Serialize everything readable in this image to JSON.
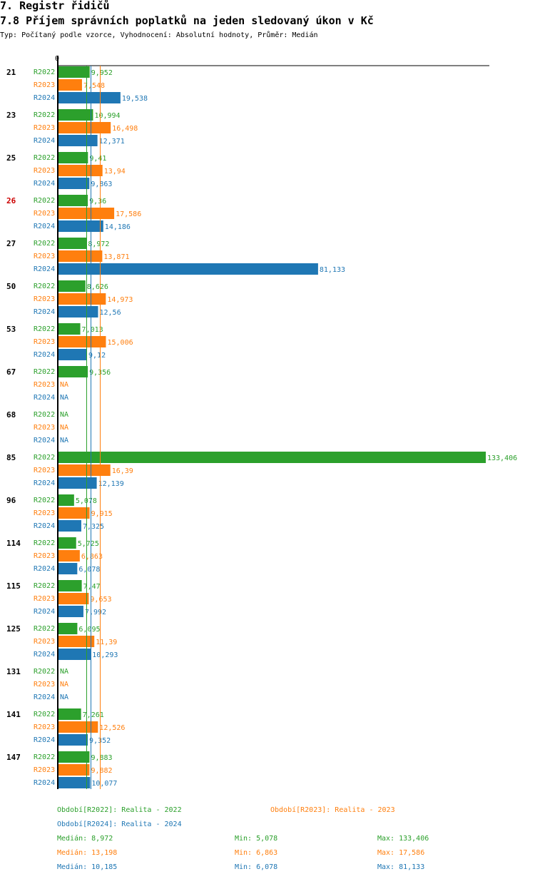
{
  "header": {
    "section_title": "7. Registr řidičů",
    "chart_title": "7.8 Příjem správních poplatků na jeden sledovaný úkon v Kč",
    "subtitle": "Typ: Počítaný podle vzorce, Vyhodnocení: Absolutní hodnoty, Průměr: Medián"
  },
  "colors": {
    "R2022": "#2ca02c",
    "R2023": "#ff7f0e",
    "R2024": "#1f77b4",
    "highlight": "#cc0000"
  },
  "chart_data": {
    "type": "bar",
    "orientation": "horizontal",
    "axis_zero_label": "0",
    "na_label": "NA",
    "series_names": [
      "R2022",
      "R2023",
      "R2024"
    ],
    "groups": [
      {
        "label": "21",
        "highlight": false,
        "values": [
          9.952,
          7.548,
          19.538
        ],
        "labels": [
          "9,952",
          "7,548",
          "19,538"
        ]
      },
      {
        "label": "23",
        "highlight": false,
        "values": [
          10.994,
          16.498,
          12.371
        ],
        "labels": [
          "10,994",
          "16,498",
          "12,371"
        ]
      },
      {
        "label": "25",
        "highlight": false,
        "values": [
          9.41,
          13.94,
          9.863
        ],
        "labels": [
          "9,41",
          "13,94",
          "9,863"
        ]
      },
      {
        "label": "26",
        "highlight": true,
        "values": [
          9.36,
          17.586,
          14.186
        ],
        "labels": [
          "9,36",
          "17,586",
          "14,186"
        ]
      },
      {
        "label": "27",
        "highlight": false,
        "values": [
          8.972,
          13.871,
          81.133
        ],
        "labels": [
          "8,972",
          "13,871",
          "81,133"
        ]
      },
      {
        "label": "50",
        "highlight": false,
        "values": [
          8.626,
          14.973,
          12.56
        ],
        "labels": [
          "8,626",
          "14,973",
          "12,56"
        ]
      },
      {
        "label": "53",
        "highlight": false,
        "values": [
          7.013,
          15.006,
          9.12
        ],
        "labels": [
          "7,013",
          "15,006",
          "9,12"
        ]
      },
      {
        "label": "67",
        "highlight": false,
        "values": [
          9.356,
          null,
          null
        ],
        "labels": [
          "9,356",
          null,
          null
        ]
      },
      {
        "label": "68",
        "highlight": false,
        "values": [
          null,
          null,
          null
        ],
        "labels": [
          null,
          null,
          null
        ]
      },
      {
        "label": "85",
        "highlight": false,
        "values": [
          133.406,
          16.39,
          12.139
        ],
        "labels": [
          "133,406",
          "16,39",
          "12,139"
        ]
      },
      {
        "label": "96",
        "highlight": false,
        "values": [
          5.078,
          9.915,
          7.325
        ],
        "labels": [
          "5,078",
          "9,915",
          "7,325"
        ]
      },
      {
        "label": "114",
        "highlight": false,
        "values": [
          5.725,
          6.863,
          6.078
        ],
        "labels": [
          "5,725",
          "6,863",
          "6,078"
        ]
      },
      {
        "label": "115",
        "highlight": false,
        "values": [
          7.47,
          9.653,
          7.992
        ],
        "labels": [
          "7,47",
          "9,653",
          "7,992"
        ]
      },
      {
        "label": "125",
        "highlight": false,
        "values": [
          6.095,
          11.39,
          10.293
        ],
        "labels": [
          "6,095",
          "11,39",
          "10,293"
        ]
      },
      {
        "label": "131",
        "highlight": false,
        "values": [
          null,
          null,
          null
        ],
        "labels": [
          null,
          null,
          null
        ]
      },
      {
        "label": "141",
        "highlight": false,
        "values": [
          7.261,
          12.526,
          9.352
        ],
        "labels": [
          "7,261",
          "12,526",
          "9,352"
        ]
      },
      {
        "label": "147",
        "highlight": false,
        "values": [
          9.883,
          9.882,
          10.077
        ],
        "labels": [
          "9,883",
          "9,882",
          "10,077"
        ]
      }
    ],
    "median_lines": [
      8.972,
      13.198,
      10.185
    ],
    "xlim": [
      0,
      133.406
    ]
  },
  "legend": {
    "entries": [
      "Období[R2022]: Realita - 2022",
      "Období[R2023]: Realita - 2023",
      "Období[R2024]: Realita - 2024"
    ],
    "stats": [
      {
        "median": "Medián: 8,972",
        "min": "Min: 5,078",
        "max": "Max: 133,406"
      },
      {
        "median": "Medián: 13,198",
        "min": "Min: 6,863",
        "max": "Max: 17,586"
      },
      {
        "median": "Medián: 10,185",
        "min": "Min: 6,078",
        "max": "Max: 81,133"
      }
    ]
  }
}
